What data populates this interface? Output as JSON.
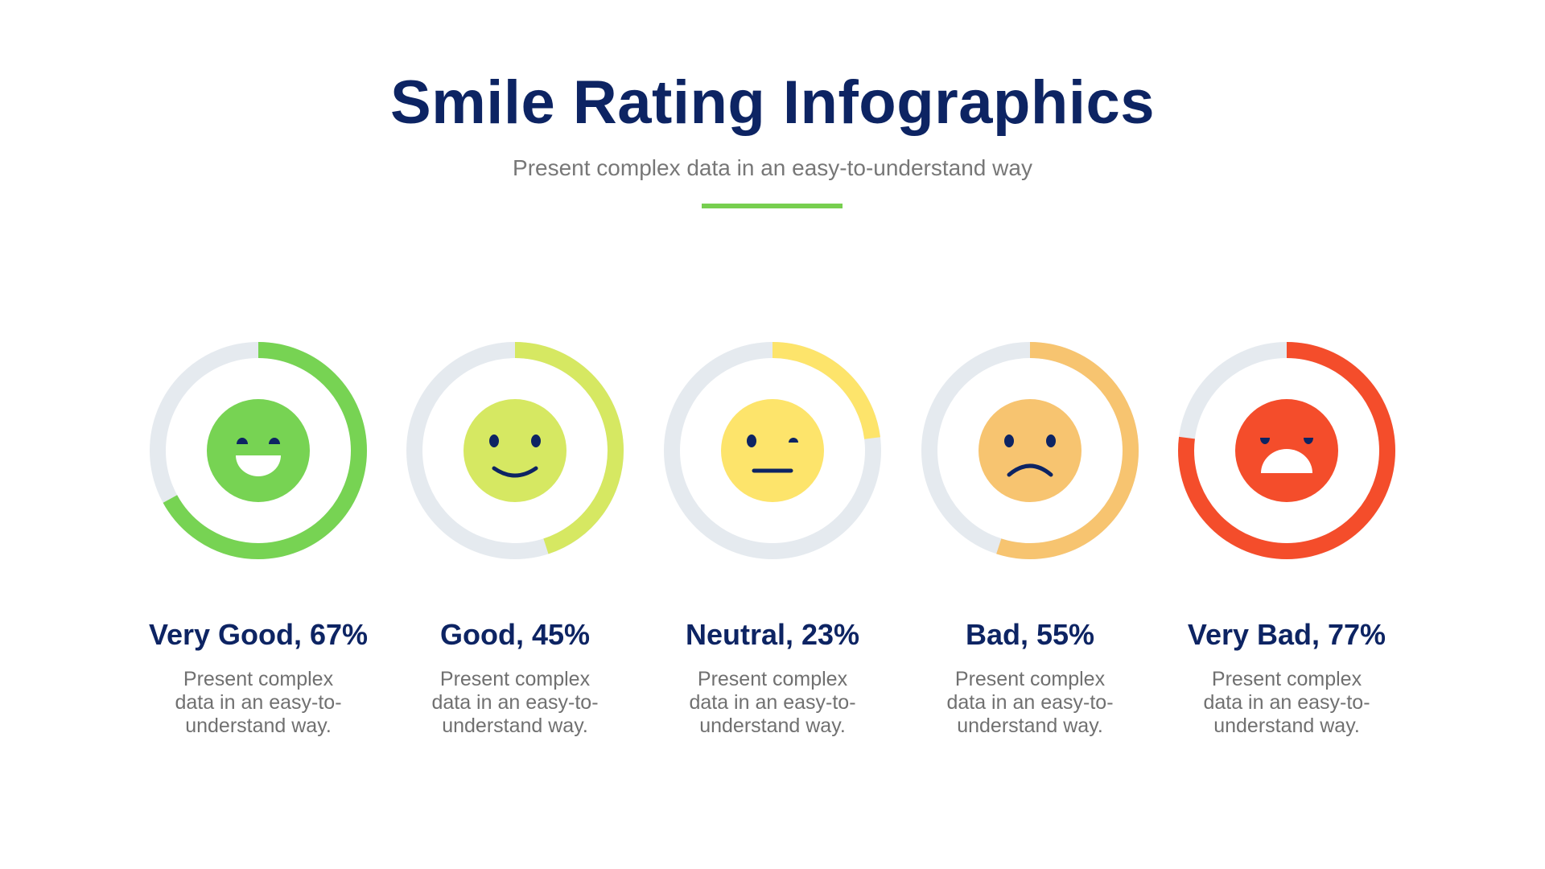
{
  "header": {
    "title": "Smile Rating Infographics",
    "subtitle": "Present complex data in an easy-to-understand way"
  },
  "colors": {
    "title": "#0d2463",
    "track": "#e5eaef",
    "accent_line": "#77cf4f"
  },
  "ratings": [
    {
      "label": "Very Good, 67%",
      "percent": 67,
      "color": "#77d353",
      "face": "very-happy-face-icon",
      "description": "Present complex data in an easy-to-understand way."
    },
    {
      "label": "Good, 45%",
      "percent": 45,
      "color": "#d6e862",
      "face": "smile-face-icon",
      "description": "Present complex data in an easy-to-understand way."
    },
    {
      "label": "Neutral, 23%",
      "percent": 23,
      "color": "#fde46b",
      "face": "neutral-face-icon",
      "description": "Present complex data in an easy-to-understand way."
    },
    {
      "label": "Bad, 55%",
      "percent": 55,
      "color": "#f7c470",
      "face": "sad-face-icon",
      "description": "Present complex data in an easy-to-understand way."
    },
    {
      "label": "Very Bad, 77%",
      "percent": 77,
      "color": "#f44d2b",
      "face": "very-sad-face-icon",
      "description": "Present complex data in an easy-to-understand way."
    }
  ]
}
